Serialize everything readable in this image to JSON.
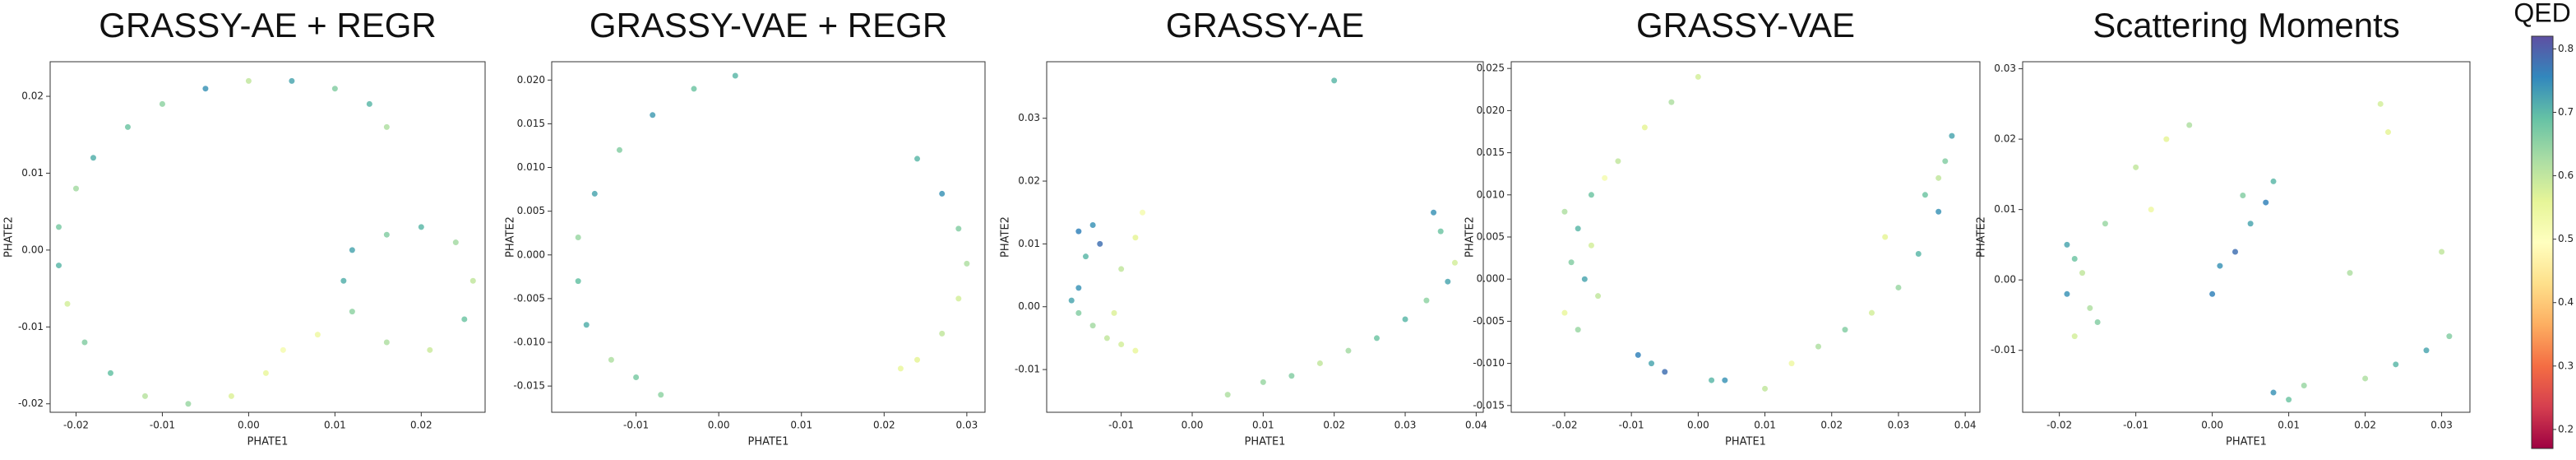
{
  "chart_data": [
    {
      "type": "scatter",
      "title": "GRASSY-AE + REGR",
      "x_label": "PHATE1",
      "y_label": "PHATE2",
      "x": [
        0.016,
        0.014,
        0.01,
        0.005,
        0.0,
        -0.005,
        -0.01,
        -0.014,
        -0.018,
        -0.02,
        -0.022,
        -0.022,
        -0.021,
        -0.019,
        -0.016,
        -0.012,
        -0.007,
        -0.002,
        0.002,
        0.004,
        0.012,
        0.016,
        0.02,
        0.024,
        0.026,
        0.025,
        0.021,
        0.016,
        0.012,
        0.011,
        0.008
      ],
      "y": [
        0.016,
        0.019,
        0.021,
        0.022,
        0.022,
        0.021,
        0.019,
        0.016,
        0.012,
        0.008,
        0.003,
        -0.002,
        -0.007,
        -0.012,
        -0.016,
        -0.019,
        -0.02,
        -0.019,
        -0.016,
        -0.013,
        0.0,
        0.002,
        0.003,
        0.001,
        -0.004,
        -0.009,
        -0.013,
        -0.012,
        -0.008,
        -0.004,
        -0.011
      ],
      "qed": [
        0.62,
        0.7,
        0.66,
        0.72,
        0.6,
        0.74,
        0.65,
        0.68,
        0.71,
        0.63,
        0.67,
        0.7,
        0.58,
        0.66,
        0.69,
        0.61,
        0.64,
        0.57,
        0.55,
        0.52,
        0.72,
        0.66,
        0.7,
        0.63,
        0.6,
        0.68,
        0.59,
        0.62,
        0.65,
        0.71,
        0.54
      ],
      "xlim": [
        -0.023,
        0.0274
      ],
      "ylim": [
        -0.0211,
        0.0245
      ],
      "xticks": [
        -0.02,
        -0.01,
        {
          "value": 0,
          "label": "0.00"
        },
        0.01,
        0.02
      ],
      "yticks": [
        -0.02,
        -0.01,
        {
          "value": 0,
          "label": "0.00"
        },
        0.01,
        0.02
      ]
    },
    {
      "type": "scatter",
      "title": "GRASSY-VAE + REGR",
      "x_label": "PHATE1",
      "y_label": "PHATE2",
      "x": [
        0.002,
        -0.003,
        -0.008,
        -0.012,
        -0.015,
        -0.017,
        -0.017,
        -0.016,
        -0.013,
        -0.01,
        -0.007,
        0.024,
        0.027,
        0.029,
        0.03,
        0.029,
        0.027,
        0.024,
        0.022
      ],
      "y": [
        0.0205,
        0.019,
        0.016,
        0.012,
        0.007,
        0.002,
        -0.003,
        -0.008,
        -0.012,
        -0.014,
        -0.016,
        0.011,
        0.007,
        0.003,
        -0.001,
        -0.005,
        -0.009,
        -0.012,
        -0.013
      ],
      "qed": [
        0.7,
        0.68,
        0.73,
        0.66,
        0.72,
        0.64,
        0.69,
        0.71,
        0.62,
        0.67,
        0.65,
        0.7,
        0.74,
        0.66,
        0.62,
        0.58,
        0.6,
        0.56,
        0.55
      ],
      "xlim": [
        -0.0202,
        0.0322
      ],
      "ylim": [
        -0.018,
        0.0221
      ],
      "xticks": [
        -0.01,
        {
          "value": 0,
          "label": "0.00"
        },
        0.01,
        0.02,
        0.03
      ],
      "yticks": [
        -0.015,
        {
          "value": -0.01,
          "label": "-0.010"
        },
        -0.005,
        {
          "value": 0,
          "label": "0.000"
        },
        0.005,
        {
          "value": 0.01,
          "label": "0.010"
        },
        0.015,
        {
          "value": 0.02,
          "label": "0.020"
        }
      ]
    },
    {
      "type": "scatter",
      "title": "GRASSY-AE",
      "x_label": "PHATE1",
      "y_label": "PHATE2",
      "x": [
        -0.016,
        -0.014,
        -0.013,
        -0.015,
        -0.017,
        -0.016,
        -0.014,
        -0.012,
        -0.01,
        -0.008,
        -0.007,
        -0.008,
        -0.01,
        0.005,
        0.01,
        0.014,
        0.018,
        0.022,
        0.026,
        0.03,
        0.033,
        0.036,
        0.037,
        0.034,
        0.035,
        0.02,
        -0.016,
        -0.011
      ],
      "y": [
        0.012,
        0.013,
        0.01,
        0.008,
        0.001,
        -0.001,
        -0.003,
        -0.005,
        -0.006,
        -0.007,
        0.015,
        0.011,
        0.006,
        -0.014,
        -0.012,
        -0.011,
        -0.009,
        -0.007,
        -0.005,
        -0.002,
        0.001,
        0.004,
        0.007,
        0.015,
        0.012,
        0.036,
        0.003,
        -0.001
      ],
      "qed": [
        0.76,
        0.74,
        0.78,
        0.7,
        0.72,
        0.66,
        0.63,
        0.6,
        0.58,
        0.55,
        0.52,
        0.56,
        0.6,
        0.62,
        0.64,
        0.66,
        0.6,
        0.63,
        0.68,
        0.7,
        0.65,
        0.72,
        0.58,
        0.74,
        0.68,
        0.7,
        0.74,
        0.57
      ],
      "xlim": [
        -0.0205,
        0.041
      ],
      "ylim": [
        -0.0168,
        0.039
      ],
      "xticks": [
        -0.01,
        {
          "value": 0,
          "label": "0.00"
        },
        0.01,
        0.02,
        0.03,
        0.04
      ],
      "yticks": [
        -0.01,
        {
          "value": 0,
          "label": "0.00"
        },
        0.01,
        0.02,
        0.03
      ]
    },
    {
      "type": "scatter",
      "title": "GRASSY-VAE",
      "x_label": "PHATE1",
      "y_label": "PHATE2",
      "x": [
        -0.02,
        -0.018,
        -0.016,
        -0.019,
        -0.017,
        -0.015,
        -0.02,
        -0.018,
        -0.016,
        -0.014,
        -0.012,
        -0.008,
        -0.004,
        0.0,
        -0.009,
        -0.007,
        -0.005,
        0.002,
        0.01,
        0.014,
        0.018,
        0.022,
        0.026,
        0.03,
        0.033,
        0.036,
        0.037,
        0.038,
        0.036,
        0.028,
        0.034,
        0.004
      ],
      "y": [
        0.008,
        0.006,
        0.004,
        0.002,
        0.0,
        -0.002,
        -0.004,
        -0.006,
        0.01,
        0.012,
        0.014,
        0.018,
        0.021,
        0.024,
        -0.009,
        -0.01,
        -0.011,
        -0.012,
        -0.013,
        -0.01,
        -0.008,
        -0.006,
        -0.004,
        -0.001,
        0.003,
        0.008,
        0.014,
        0.017,
        0.012,
        0.005,
        0.01,
        -0.012
      ],
      "qed": [
        0.62,
        0.7,
        0.58,
        0.66,
        0.72,
        0.6,
        0.55,
        0.64,
        0.68,
        0.52,
        0.6,
        0.56,
        0.62,
        0.58,
        0.76,
        0.72,
        0.78,
        0.7,
        0.6,
        0.54,
        0.62,
        0.66,
        0.58,
        0.64,
        0.7,
        0.74,
        0.66,
        0.72,
        0.6,
        0.56,
        0.68,
        0.74
      ],
      "xlim": [
        -0.028,
        0.0422
      ],
      "ylim": [
        -0.0158,
        0.0258
      ],
      "xticks": [
        -0.02,
        -0.01,
        {
          "value": 0,
          "label": "0.00"
        },
        0.01,
        0.02,
        0.03,
        0.04
      ],
      "yticks": [
        -0.015,
        {
          "value": -0.01,
          "label": "-0.010"
        },
        -0.005,
        {
          "value": 0,
          "label": "0.000"
        },
        0.005,
        {
          "value": 0.01,
          "label": "0.010"
        },
        0.015,
        {
          "value": 0.02,
          "label": "0.020"
        },
        0.025
      ]
    },
    {
      "type": "scatter",
      "title": "Scattering Moments",
      "x_label": "PHATE1",
      "y_label": "PHATE2",
      "x": [
        -0.019,
        -0.018,
        -0.017,
        -0.019,
        -0.016,
        -0.015,
        -0.018,
        -0.014,
        -0.01,
        -0.006,
        -0.003,
        0.0,
        0.001,
        0.003,
        0.005,
        0.007,
        0.008,
        0.004,
        0.008,
        0.01,
        0.012,
        0.02,
        0.024,
        0.028,
        0.031,
        0.022,
        0.023,
        0.018,
        0.03,
        -0.008
      ],
      "y": [
        0.005,
        0.003,
        0.001,
        -0.002,
        -0.004,
        -0.006,
        -0.008,
        0.008,
        0.016,
        0.02,
        0.022,
        -0.002,
        0.002,
        0.004,
        0.008,
        0.011,
        0.014,
        0.012,
        -0.016,
        -0.017,
        -0.015,
        -0.014,
        -0.012,
        -0.01,
        -0.008,
        0.025,
        0.021,
        0.001,
        0.004,
        0.01
      ],
      "qed": [
        0.72,
        0.68,
        0.6,
        0.74,
        0.62,
        0.66,
        0.58,
        0.64,
        0.6,
        0.56,
        0.62,
        0.76,
        0.74,
        0.78,
        0.72,
        0.76,
        0.7,
        0.66,
        0.74,
        0.68,
        0.64,
        0.62,
        0.7,
        0.72,
        0.66,
        0.58,
        0.56,
        0.62,
        0.6,
        0.54
      ],
      "xlim": [
        -0.0248,
        0.0337
      ],
      "ylim": [
        -0.0188,
        0.031
      ],
      "xticks": [
        -0.02,
        -0.01,
        {
          "value": 0,
          "label": "0.00"
        },
        0.01,
        0.02,
        0.03
      ],
      "yticks": [
        -0.01,
        {
          "value": 0,
          "label": "0.00"
        },
        0.01,
        0.02,
        0.03
      ]
    },
    {
      "type": "colorbar",
      "title": "QED",
      "clim": [
        0.17,
        0.82
      ],
      "ticks": [
        0.2,
        0.3,
        0.4,
        0.5,
        0.6,
        0.7,
        0.8
      ],
      "colormap": [
        "#9e0142",
        "#d53e4f",
        "#f46d43",
        "#fdae61",
        "#fee08b",
        "#ffffbf",
        "#e6f598",
        "#abdda4",
        "#66c2a5",
        "#3288bd",
        "#5e4fa2"
      ]
    }
  ]
}
